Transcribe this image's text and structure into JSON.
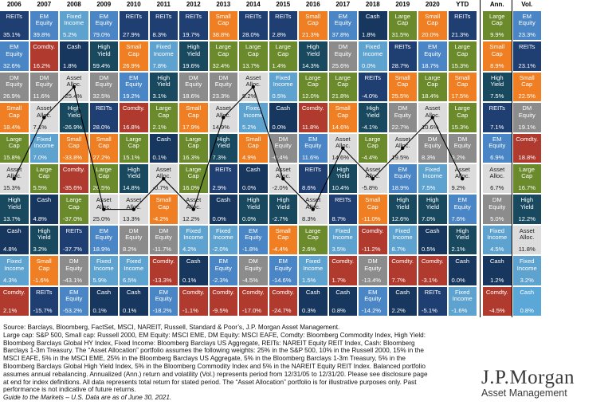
{
  "colors": {
    "reits": "#1f3f73",
    "em": "#4a86c5",
    "fi": "#5ea3d0",
    "cash": "#17375e",
    "hy": "#18495f",
    "dm": "#8c8c8c",
    "smallcap": "#f07f23",
    "largecap": "#6b8a2b",
    "aa": "#dcdcdc",
    "comdty": "#b03a2e",
    "vol_cash": "#5aa7d8"
  },
  "labels": {
    "reits": "REITs",
    "em": "EM\nEquity",
    "fi": "Fixed\nIncome",
    "cash": "Cash",
    "hy": "High\nYield",
    "dm": "DM\nEquity",
    "smallcap": "Small\nCap",
    "largecap": "Large\nCap",
    "aa": "Asset\nAlloc.",
    "comdty": "Comdty."
  },
  "chart_data": {
    "type": "table",
    "columns": [
      "2006",
      "2007",
      "2008",
      "2009",
      "2010",
      "2011",
      "2012",
      "2013",
      "2014",
      "2015",
      "2016",
      "2017",
      "2018",
      "2019",
      "2020",
      "YTD",
      "Ann.",
      "Vol."
    ],
    "annual_columns": [
      "2006",
      "2007",
      "2008",
      "2009",
      "2010",
      "2011",
      "2012",
      "2013",
      "2014",
      "2015",
      "2016",
      "2017",
      "2018",
      "2019",
      "2020",
      "YTD"
    ],
    "grid": [
      [
        [
          "reits",
          "35.1%"
        ],
        [
          "em",
          "39.8%"
        ],
        [
          "fi",
          "5.2%"
        ],
        [
          "em",
          "79.0%"
        ],
        [
          "reits",
          "27.9%"
        ],
        [
          "reits",
          "8.3%"
        ],
        [
          "reits",
          "19.7%"
        ],
        [
          "smallcap",
          "38.8%"
        ],
        [
          "reits",
          "28.0%"
        ],
        [
          "reits",
          "2.8%"
        ],
        [
          "smallcap",
          "21.3%"
        ],
        [
          "em",
          "37.8%"
        ],
        [
          "cash",
          "1.8%"
        ],
        [
          "largecap",
          "31.5%"
        ],
        [
          "smallcap",
          "20.0%"
        ],
        [
          "reits",
          "21.3%"
        ],
        [
          "largecap",
          "9.9%"
        ],
        [
          "em",
          "23.3%"
        ]
      ],
      [
        [
          "em",
          "32.6%"
        ],
        [
          "comdty",
          "16.2%"
        ],
        [
          "cash",
          "1.8%"
        ],
        [
          "hy",
          "59.4%"
        ],
        [
          "smallcap",
          "26.9%"
        ],
        [
          "fi",
          "7.8%"
        ],
        [
          "hy",
          "19.6%"
        ],
        [
          "largecap",
          "32.4%"
        ],
        [
          "largecap",
          "13.7%"
        ],
        [
          "largecap",
          "1.4%"
        ],
        [
          "hy",
          "14.3%"
        ],
        [
          "dm",
          "25.6%"
        ],
        [
          "fi",
          "0.0%"
        ],
        [
          "reits",
          "28.7%"
        ],
        [
          "em",
          "18.7%"
        ],
        [
          "largecap",
          "15.3%"
        ],
        [
          "smallcap",
          "8.9%"
        ],
        [
          "reits",
          "23.1%"
        ]
      ],
      [
        [
          "dm",
          "26.9%"
        ],
        [
          "dm",
          "11.6%"
        ],
        [
          "aa",
          "-25.4%"
        ],
        [
          "dm",
          "32.5%"
        ],
        [
          "em",
          "19.2%"
        ],
        [
          "hy",
          "3.1%"
        ],
        [
          "dm",
          "18.6%"
        ],
        [
          "dm",
          "23.3%"
        ],
        [
          "aa",
          "5.2%"
        ],
        [
          "fi",
          "0.5%"
        ],
        [
          "largecap",
          "12.0%"
        ],
        [
          "largecap",
          "21.8%"
        ],
        [
          "reits",
          "-4.0%"
        ],
        [
          "smallcap",
          "25.5%"
        ],
        [
          "largecap",
          "18.4%"
        ],
        [
          "smallcap",
          "17.5%"
        ],
        [
          "hy",
          "7.5%"
        ],
        [
          "smallcap",
          "22.5%"
        ]
      ],
      [
        [
          "smallcap",
          "18.4%"
        ],
        [
          "aa",
          "7.1%"
        ],
        [
          "hy",
          "-26.9%"
        ],
        [
          "reits",
          "28.0%"
        ],
        [
          "comdty",
          "16.8%"
        ],
        [
          "largecap",
          "2.1%"
        ],
        [
          "smallcap",
          "17.9%"
        ],
        [
          "aa",
          "14.9%"
        ],
        [
          "fi",
          "5.2%"
        ],
        [
          "cash",
          "0.0%"
        ],
        [
          "comdty",
          "11.8%"
        ],
        [
          "smallcap",
          "14.6%"
        ],
        [
          "hy",
          "-4.1%"
        ],
        [
          "dm",
          "22.7%"
        ],
        [
          "aa",
          "10.6%"
        ],
        [
          "largecap",
          "15.3%"
        ],
        [
          "reits",
          "7.1%"
        ],
        [
          "dm",
          "19.1%"
        ]
      ],
      [
        [
          "largecap",
          "15.8%"
        ],
        [
          "fi",
          "7.0%"
        ],
        [
          "smallcap",
          "-33.8%"
        ],
        [
          "smallcap",
          "27.2%"
        ],
        [
          "largecap",
          "15.1%"
        ],
        [
          "cash",
          "0.1%"
        ],
        [
          "largecap",
          "16.3%"
        ],
        [
          "hy",
          "7.3%"
        ],
        [
          "smallcap",
          "4.9%"
        ],
        [
          "dm",
          "-0.4%"
        ],
        [
          "em",
          "11.6%"
        ],
        [
          "aa",
          "14.6%"
        ],
        [
          "largecap",
          "-4.4%"
        ],
        [
          "aa",
          "19.5%"
        ],
        [
          "dm",
          "8.3%"
        ],
        [
          "dm",
          "9.2%"
        ],
        [
          "em",
          "6.9%"
        ],
        [
          "comdty",
          "18.8%"
        ]
      ],
      [
        [
          "aa",
          "15.3%"
        ],
        [
          "largecap",
          "5.5%"
        ],
        [
          "comdty",
          "-35.6%"
        ],
        [
          "largecap",
          "26.5%"
        ],
        [
          "hy",
          "14.8%"
        ],
        [
          "aa",
          "-0.7%"
        ],
        [
          "largecap",
          "16.0%"
        ],
        [
          "reits",
          "2.9%"
        ],
        [
          "cash",
          "0.0%"
        ],
        [
          "aa",
          "-2.0%"
        ],
        [
          "reits",
          "8.6%"
        ],
        [
          "hy",
          "10.4%"
        ],
        [
          "aa",
          "-5.8%"
        ],
        [
          "em",
          "18.9%"
        ],
        [
          "fi",
          "7.5%"
        ],
        [
          "aa",
          "9.2%"
        ],
        [
          "aa",
          "6.7%"
        ],
        [
          "largecap",
          "16.7%"
        ]
      ],
      [
        [
          "hy",
          "13.7%"
        ],
        [
          "cash",
          "4.8%"
        ],
        [
          "largecap",
          "-37.0%"
        ],
        [
          "aa",
          "25.0%"
        ],
        [
          "aa",
          "13.3%"
        ],
        [
          "smallcap",
          "-4.2%"
        ],
        [
          "aa",
          "12.2%"
        ],
        [
          "cash",
          "0.0%"
        ],
        [
          "hy",
          "0.0%"
        ],
        [
          "hy",
          "-2.7%"
        ],
        [
          "aa",
          "8.3%"
        ],
        [
          "reits",
          "8.7%"
        ],
        [
          "smallcap",
          "-11.0%"
        ],
        [
          "hy",
          "12.6%"
        ],
        [
          "hy",
          "7.0%"
        ],
        [
          "em",
          "7.6%"
        ],
        [
          "dm",
          "5.0%"
        ],
        [
          "hy",
          "12.2%"
        ]
      ],
      [
        [
          "cash",
          "4.8%"
        ],
        [
          "hy",
          "3.2%"
        ],
        [
          "reits",
          "-37.7%"
        ],
        [
          "em",
          "18.9%"
        ],
        [
          "dm",
          "8.2%"
        ],
        [
          "dm",
          "-11.7%"
        ],
        [
          "fi",
          "4.2%"
        ],
        [
          "fi",
          "-2.0%"
        ],
        [
          "em",
          "-1.8%"
        ],
        [
          "smallcap",
          "-4.4%"
        ],
        [
          "largecap",
          "2.6%"
        ],
        [
          "fi",
          "3.5%"
        ],
        [
          "comdty",
          "-11.2%"
        ],
        [
          "fi",
          "8.7%"
        ],
        [
          "cash",
          "0.5%"
        ],
        [
          "hy",
          "2.1%"
        ],
        [
          "fi",
          "4.5%"
        ],
        [
          "aa",
          "11.8%"
        ]
      ],
      [
        [
          "fi",
          "4.3%"
        ],
        [
          "smallcap",
          "-1.6%"
        ],
        [
          "dm",
          "-43.1%"
        ],
        [
          "fi",
          "5.9%"
        ],
        [
          "fi",
          "6.5%"
        ],
        [
          "comdty",
          "-13.3%"
        ],
        [
          "cash",
          "0.1%"
        ],
        [
          "em",
          "-2.3%"
        ],
        [
          "dm",
          "-4.5%"
        ],
        [
          "em",
          "-14.6%"
        ],
        [
          "fi",
          "1.5%"
        ],
        [
          "comdty",
          "1.7%"
        ],
        [
          "dm",
          "-13.4%"
        ],
        [
          "comdty",
          "7.7%"
        ],
        [
          "comdty",
          "-3.1%"
        ],
        [
          "cash",
          "0.0%"
        ],
        [
          "cash",
          "1.2%"
        ],
        [
          "fi",
          "3.2%"
        ]
      ],
      [
        [
          "comdty",
          "2.1%"
        ],
        [
          "reits",
          "-15.7%"
        ],
        [
          "em",
          "-53.2%"
        ],
        [
          "cash",
          "0.1%"
        ],
        [
          "cash",
          "0.1%"
        ],
        [
          "em",
          "-18.2%"
        ],
        [
          "comdty",
          "-1.1%"
        ],
        [
          "comdty",
          "-9.5%"
        ],
        [
          "comdty",
          "-17.0%"
        ],
        [
          "comdty",
          "-24.7%"
        ],
        [
          "cash",
          "0.3%"
        ],
        [
          "cash",
          "0.8%"
        ],
        [
          "em",
          "-14.2%"
        ],
        [
          "cash",
          "2.2%"
        ],
        [
          "reits",
          "-5.1%"
        ],
        [
          "fi",
          "-1.6%"
        ],
        [
          "comdty",
          "-4.5%"
        ],
        [
          "cash",
          "0.8%"
        ]
      ]
    ],
    "asset_allocation_series": {
      "x": [
        "2006",
        "2007",
        "2008",
        "2009",
        "2010",
        "2011",
        "2012",
        "2013",
        "2014",
        "2015",
        "2016",
        "2017",
        "2018",
        "2019",
        "2020",
        "YTD"
      ],
      "values": [
        "15.3%",
        "7.1%",
        "-25.4%",
        "25.0%",
        "13.3%",
        "-0.7%",
        "12.2%",
        "14.9%",
        "5.2%",
        "-2.0%",
        "8.3%",
        "14.6%",
        "-5.8%",
        "19.5%",
        "10.6%",
        "9.2%"
      ]
    }
  },
  "footer": {
    "source_lines": [
      "Source: Barclays, Bloomberg, FactSet, MSCI, NAREIT, Russell, Standard & Poor’s, J.P. Morgan Asset Management.",
      "Large cap: S&P 500, Small cap: Russell 2000, EM Equity: MSCI EME, DM Equity: MSCI EAFE, Comdty: Bloomberg Commodity Index, High Yield:",
      "Bloomberg Barclays Global HY Index, Fixed Income: Bloomberg Barclays US Aggregate, REITs: NAREIT Equity REIT Index, Cash: Bloomberg",
      "Barclays 1-3m Treasury. The “Asset Allocation” portfolio assumes the following weights: 25% in the S&P 500, 10% in the Russell 2000, 15% in the",
      "MSCI EAFE, 5% in the MSCI EME, 25% in the Bloomberg Barclays US Aggregate, 5% in the Bloomberg Barclays 1-3m Treasury, 5% in the",
      "Bloomberg Barclays Global High Yield Index, 5% in the Bloomberg Commodity Index and 5% in the NAREIT Equity REIT Index. Balanced portfolio",
      "assumes annual rebalancing. Annualized (Ann.) return and volatility (Vol.) represents period from 12/31/05 to 12/31/20. Please see disclosure page",
      "at end for index definitions. All data represents total return for stated period. The “Asset Allocation” portfolio is for illustrative purposes only. Past",
      "performance is not indicative of future returns."
    ],
    "guide_line": "Guide to the Markets – U.S. Data are as of June 30, 2021."
  },
  "logo": {
    "brand": "J.P.Morgan",
    "subtitle": "Asset Management"
  }
}
